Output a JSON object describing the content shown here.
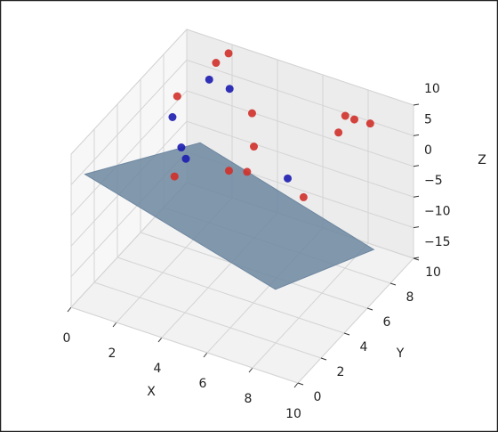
{
  "chart_data": {
    "type": "scatter3d",
    "xlabel": "X",
    "ylabel": "Y",
    "zlabel": "Z",
    "xlim": [
      0,
      10
    ],
    "ylim": [
      0,
      10
    ],
    "zlim": [
      -15,
      10
    ],
    "xticks": [
      0,
      2,
      4,
      6,
      8,
      10
    ],
    "yticks": [
      0,
      2,
      4,
      6,
      8,
      10
    ],
    "zticks": [
      10,
      5,
      0,
      {
        "value": -5,
        "label": "−5"
      },
      {
        "value": -10,
        "label": "−10"
      },
      {
        "value": -15,
        "label": "−15"
      }
    ],
    "grid": true,
    "surface": {
      "color": "#6d87a0",
      "x": [
        0.1,
        1.1,
        8.5,
        8.5
      ],
      "y": [
        1,
        9,
        9.5,
        1
      ],
      "z": [
        4.8,
        -5.1,
        -14.4,
        -3.6
      ]
    },
    "series": [
      {
        "color": "#d0302a",
        "x": [
          2.1,
          1.8,
          0.6,
          3.9,
          7.5,
          7.9,
          8.6,
          7.2,
          5,
          3.9,
          4.7,
          1.5,
          7.7
        ],
        "y": [
          9.5,
          9,
          8,
          8,
          9,
          9,
          9,
          9,
          6,
          6,
          6,
          6,
          5
        ],
        "z": [
          9.7,
          8.8,
          3.9,
          5.2,
          7.2,
          7.1,
          7.3,
          4.1,
          5.2,
          -0.1,
          0.7,
          -4,
          2.3
        ]
      },
      {
        "color": "#1c1cb0",
        "x": [
          1.5,
          2.4,
          0.9,
          1.8,
          2,
          7
        ],
        "y": [
          9,
          9,
          7,
          6,
          6,
          5
        ],
        "z": [
          5.7,
          5.3,
          2.9,
          1.1,
          -0.5,
          4.5
        ]
      }
    ]
  }
}
